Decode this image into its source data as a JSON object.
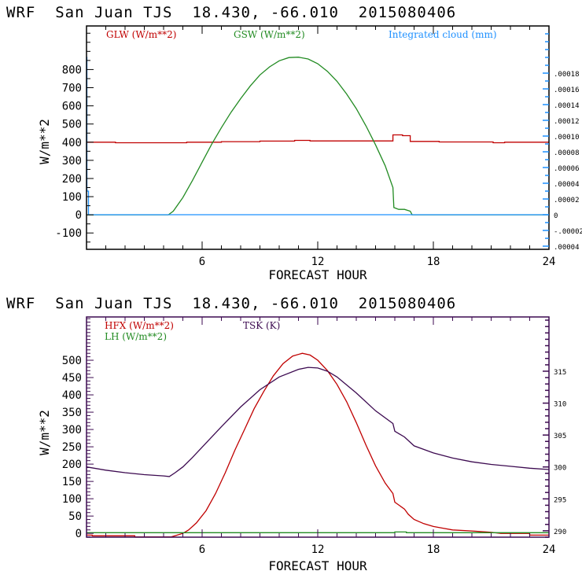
{
  "chart_data": [
    {
      "type": "line",
      "title": "WRF  San Juan TJS  18.430, -66.010  2015080406",
      "xlabel": "FORECAST HOUR",
      "ylabel": "W/m**2",
      "y2label": "",
      "xlim": [
        0,
        24
      ],
      "ylim": [
        -190,
        1040
      ],
      "y2lim": [
        -4.4e-05,
        0.00024
      ],
      "x_ticks": [
        6,
        12,
        18,
        24
      ],
      "x_tick_labels": [
        "6",
        "12",
        "18",
        "24"
      ],
      "y_ticks": [
        -100,
        0,
        100,
        200,
        300,
        400,
        500,
        600,
        700,
        800
      ],
      "y_tick_labels": [
        "-100",
        "0",
        "100",
        "200",
        "300",
        "400",
        "500",
        "600",
        "700",
        "800"
      ],
      "y2_ticks": [
        -4e-05,
        -2e-05,
        0,
        2e-05,
        4e-05,
        6e-05,
        8e-05,
        0.0001,
        0.00012,
        0.00014,
        0.00016,
        0.00018
      ],
      "y2_tick_labels": [
        ".00004",
        "-.00002",
        "0",
        ".00002",
        ".00004",
        ".00006",
        ".00008",
        ".00010",
        ".00012",
        ".00014",
        ".00016",
        ".00018"
      ],
      "legend": [
        "GLW (W/m**2)",
        "GSW (W/m**2)",
        "Integrated cloud (mm)"
      ],
      "legend_position": "top",
      "grid": false,
      "series": [
        {
          "name": "GLW (W/m**2)",
          "axis": "left",
          "color": "#c00000",
          "x": [
            0,
            1.5,
            1.5,
            5.2,
            5.2,
            7.0,
            7.0,
            9.0,
            9.0,
            10.8,
            10.8,
            11.6,
            11.6,
            15.9,
            15.9,
            16.4,
            16.4,
            16.8,
            16.8,
            18.3,
            18.3,
            21.1,
            21.1,
            21.7,
            21.7,
            24
          ],
          "y": [
            400,
            400,
            397,
            397,
            400,
            400,
            403,
            403,
            406,
            406,
            410,
            410,
            407,
            407,
            440,
            440,
            436,
            436,
            404,
            404,
            401,
            401,
            397,
            397,
            400,
            400
          ]
        },
        {
          "name": "GSW (W/m**2)",
          "axis": "left",
          "color": "#228b22",
          "x": [
            0,
            4.25,
            4.5,
            5,
            5.5,
            6,
            6.5,
            7,
            7.5,
            8,
            8.5,
            9,
            9.5,
            10,
            10.5,
            11,
            11.5,
            12,
            12.5,
            13,
            13.5,
            14,
            14.5,
            15,
            15.5,
            15.9,
            15.95,
            16.2,
            16.5,
            16.8,
            16.9,
            24
          ],
          "y": [
            0,
            0,
            20,
            95,
            190,
            290,
            390,
            480,
            565,
            640,
            710,
            770,
            815,
            848,
            866,
            868,
            858,
            832,
            790,
            735,
            665,
            585,
            490,
            385,
            270,
            150,
            40,
            30,
            30,
            20,
            0,
            0
          ]
        },
        {
          "name": "Integrated cloud (mm)",
          "axis": "right",
          "color": "#1e90ff",
          "x": [
            0,
            0.02,
            0.02,
            0.1,
            0.1,
            24
          ],
          "y": [
            0.0002,
            0.0002,
            3e-05,
            3e-05,
            0,
            0
          ]
        }
      ]
    },
    {
      "type": "line",
      "title": "WRF  San Juan TJS  18.430, -66.010  2015080406",
      "xlabel": "FORECAST HOUR",
      "ylabel": "W/m**2",
      "xlim": [
        0,
        24
      ],
      "ylim": [
        -11,
        625
      ],
      "y2lim": [
        289.0,
        323.5
      ],
      "x_ticks": [
        6,
        12,
        18,
        24
      ],
      "x_tick_labels": [
        "6",
        "12",
        "18",
        "24"
      ],
      "y_ticks": [
        0,
        50,
        100,
        150,
        200,
        250,
        300,
        350,
        400,
        450,
        500
      ],
      "y_tick_labels": [
        "0",
        "50",
        "100",
        "150",
        "200",
        "250",
        "300",
        "350",
        "400",
        "450",
        "500"
      ],
      "y2_ticks": [
        290,
        295,
        300,
        305,
        310,
        315
      ],
      "y2_tick_labels": [
        "290",
        "295",
        "300",
        "305",
        "310",
        "315"
      ],
      "legend": [
        "HFX (W/m**2)",
        "LH (W/m**2)",
        "TSK (K)"
      ],
      "legend_position": "top-left",
      "grid": false,
      "series": [
        {
          "name": "HFX (W/m**2)",
          "axis": "left",
          "color": "#c00000",
          "x": [
            0,
            0.3,
            0.3,
            2.5,
            2.5,
            4.4,
            4.7,
            5.0,
            5.3,
            5.7,
            6.2,
            6.7,
            7.2,
            7.7,
            8.2,
            8.7,
            9.2,
            9.7,
            10.2,
            10.7,
            11.2,
            11.6,
            12.0,
            12.5,
            13.0,
            13.5,
            14.0,
            14.5,
            15.0,
            15.5,
            15.9,
            16.0,
            16.5,
            16.7,
            17.0,
            17.5,
            18.0,
            18.5,
            19.0,
            20.0,
            21.0,
            21.5,
            23.0,
            23.0,
            24
          ],
          "y": [
            -5,
            -5,
            -7,
            -7,
            -10,
            -10,
            -5,
            0,
            10,
            30,
            65,
            115,
            175,
            240,
            300,
            360,
            410,
            455,
            490,
            512,
            520,
            515,
            500,
            470,
            430,
            380,
            320,
            255,
            195,
            145,
            115,
            90,
            70,
            55,
            40,
            28,
            20,
            15,
            10,
            7,
            3,
            0,
            0,
            -5,
            -5
          ]
        },
        {
          "name": "LH (W/m**2)",
          "axis": "left",
          "color": "#228b22",
          "x": [
            0,
            16.0,
            16.0,
            16.6,
            16.6,
            24
          ],
          "y": [
            2,
            2,
            4,
            4,
            2,
            2
          ]
        },
        {
          "name": "TSK (K)",
          "axis": "right",
          "color": "#3c0a50",
          "x": [
            0,
            1,
            2,
            3,
            4,
            4.3,
            4.6,
            5,
            5.5,
            6,
            7,
            8,
            9,
            10,
            11,
            11.5,
            12,
            12.5,
            13,
            14,
            15,
            15.9,
            16.0,
            16.5,
            17,
            18,
            19,
            20,
            21,
            22,
            23,
            24
          ],
          "y": [
            300.0,
            299.5,
            299.1,
            298.8,
            298.6,
            298.5,
            299.1,
            300.0,
            301.5,
            303.1,
            306.3,
            309.4,
            312.1,
            314.1,
            315.3,
            315.6,
            315.5,
            315.0,
            314.1,
            311.6,
            308.8,
            306.8,
            305.6,
            304.7,
            303.3,
            302.2,
            301.4,
            300.8,
            300.4,
            300.1,
            299.8,
            299.6
          ]
        }
      ]
    }
  ]
}
